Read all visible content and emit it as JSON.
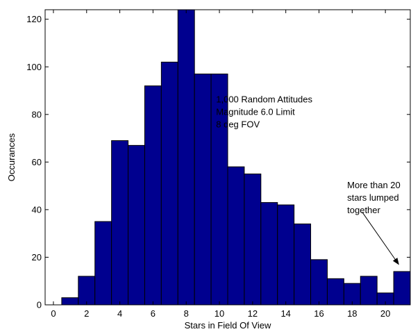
{
  "chart_data": {
    "type": "bar",
    "title": "",
    "xlabel": "Stars in Field Of View",
    "ylabel": "Occurances",
    "xlim": [
      -0.5,
      21.5
    ],
    "ylim": [
      0,
      124
    ],
    "grid": false,
    "bar_color": "#00008f",
    "bar_edge_color": "#000000",
    "x": [
      0,
      1,
      2,
      3,
      4,
      5,
      6,
      7,
      8,
      9,
      10,
      11,
      12,
      13,
      14,
      15,
      16,
      17,
      18,
      19,
      20,
      21
    ],
    "values": [
      0,
      3,
      12,
      35,
      69,
      67,
      92,
      102,
      124,
      97,
      97,
      58,
      55,
      43,
      42,
      34,
      19,
      11,
      9,
      12,
      5,
      14
    ],
    "x_ticks": [
      0,
      2,
      4,
      6,
      8,
      10,
      12,
      14,
      16,
      18,
      20
    ],
    "y_ticks": [
      0,
      20,
      40,
      60,
      80,
      100,
      120
    ],
    "annotations": [
      {
        "id": "info",
        "lines": [
          "1,000 Random Attitudes",
          "Magnitude 6.0 Limit",
          "8 deg FOV"
        ],
        "at": [
          9.8,
          85
        ]
      },
      {
        "id": "lumped",
        "lines": [
          "More than 20",
          "stars lumped",
          "together"
        ],
        "at": [
          17.7,
          49
        ],
        "arrow_from": [
          18.6,
          39
        ],
        "arrow_to": [
          20.8,
          17
        ]
      }
    ]
  }
}
